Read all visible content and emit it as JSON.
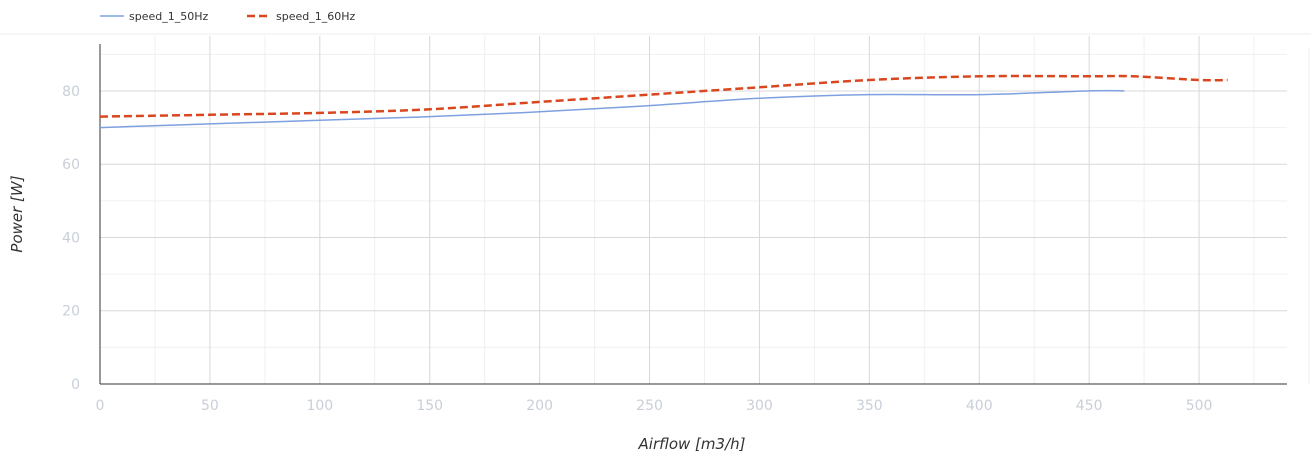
{
  "chart_data": {
    "type": "line",
    "xlabel": "Airflow [m3/h]",
    "ylabel": "Power [W]",
    "xlim": [
      0,
      540
    ],
    "ylim": [
      0,
      95
    ],
    "x_ticks": [
      0,
      50,
      100,
      150,
      200,
      250,
      300,
      350,
      400,
      450,
      500
    ],
    "y_ticks": [
      0,
      20,
      40,
      60,
      80
    ],
    "grid": true,
    "legend_position": "top-left",
    "series": [
      {
        "name": "speed_1_50Hz",
        "color": "#7ea0e0",
        "dash": "solid",
        "x": [
          0,
          50,
          100,
          150,
          200,
          250,
          300,
          350,
          400,
          450,
          466
        ],
        "y": [
          70,
          71,
          72,
          73,
          74.3,
          76,
          78,
          79,
          79,
          80,
          80
        ]
      },
      {
        "name": "speed_1_60Hz",
        "color": "#d9471f",
        "dash": "dashed",
        "x": [
          0,
          50,
          100,
          150,
          200,
          250,
          300,
          350,
          400,
          450,
          470,
          500,
          513
        ],
        "y": [
          73,
          73.5,
          74,
          75,
          77,
          79,
          81,
          83,
          84,
          84,
          84,
          83,
          83
        ]
      }
    ]
  }
}
